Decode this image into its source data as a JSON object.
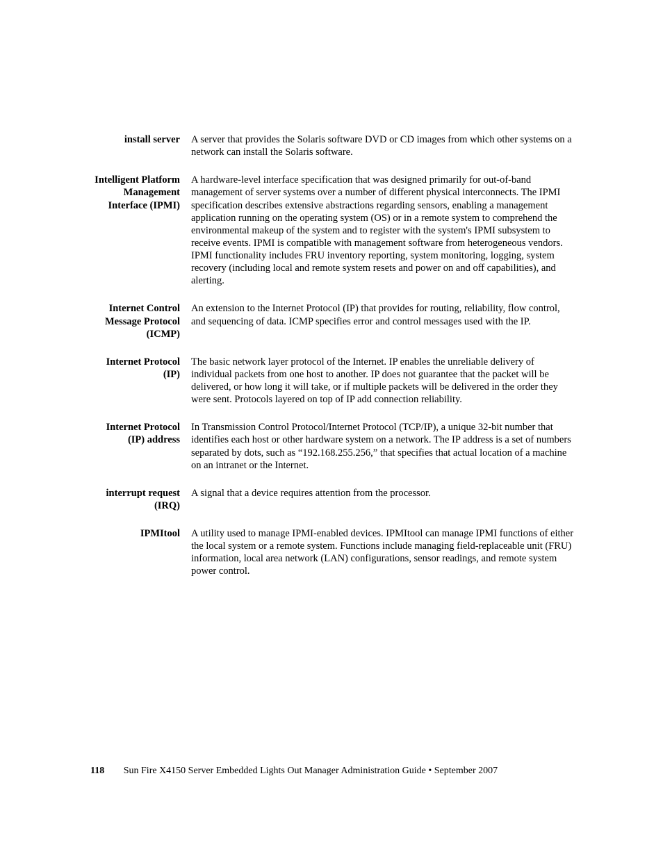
{
  "glossary": [
    {
      "term": "install server",
      "definition": "A server that provides the Solaris software DVD or CD images from which other systems on a network can install the Solaris software."
    },
    {
      "term": "Intelligent Platform Management Interface (IPMI)",
      "definition": "A hardware-level interface specification that was designed primarily for out-of-band management of server systems over a number of different physical interconnects. The IPMI specification describes extensive abstractions regarding sensors, enabling a management application running on the operating system (OS) or in a remote system to comprehend the environmental makeup of the system and to register with the system's IPMI subsystem to receive events. IPMI is compatible with management software from heterogeneous vendors. IPMI functionality includes FRU inventory reporting, system monitoring, logging, system recovery (including local and remote system resets and power on and off capabilities), and alerting."
    },
    {
      "term": "Internet Control Message Protocol (ICMP)",
      "definition": "An extension to the Internet Protocol (IP) that provides for routing, reliability, flow control, and sequencing of data. ICMP specifies error and control messages used with the IP."
    },
    {
      "term": "Internet Protocol (IP)",
      "definition": "The basic network layer protocol of the Internet. IP enables the unreliable delivery of individual packets from one host to another. IP does not guarantee that the packet will be delivered, or how long it will take, or if multiple packets will be delivered in the order they were sent. Protocols layered on top of IP add connection reliability."
    },
    {
      "term": "Internet Protocol (IP) address",
      "definition": "In Transmission Control Protocol/Internet Protocol (TCP/IP), a unique 32-bit number that identifies each host or other hardware system on a network. The IP address is a set of numbers separated by dots, such as “192.168.255.256,” that specifies that actual location of a machine on an intranet or the Internet."
    },
    {
      "term": "interrupt request (IRQ)",
      "definition": "A signal that a device requires attention from the processor."
    },
    {
      "term": "IPMItool",
      "definition": "A utility used to manage IPMI-enabled devices. IPMItool can manage IPMI functions of either the local system or a remote system. Functions include managing field-replaceable unit (FRU) information, local area network (LAN) configurations, sensor readings, and remote system power control."
    }
  ],
  "footer": {
    "page_number": "118",
    "title": "Sun Fire X4150 Server Embedded Lights Out Manager Administration Guide  •  September 2007"
  }
}
